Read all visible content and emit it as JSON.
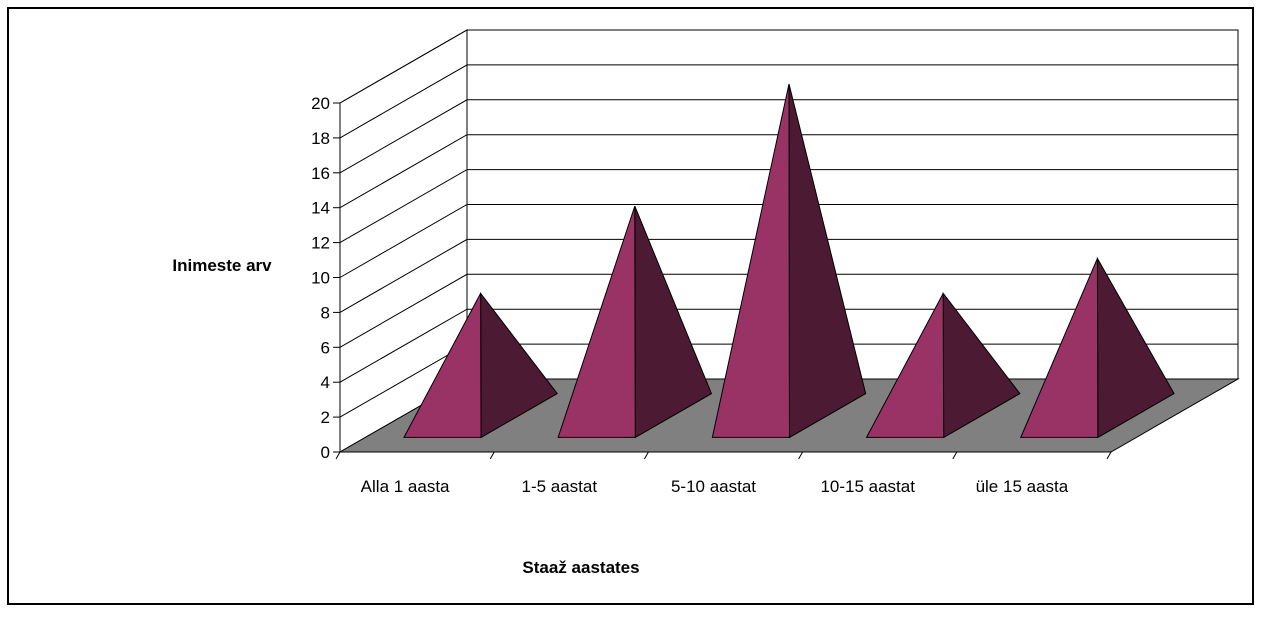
{
  "chart_data": {
    "type": "bar",
    "bar_shape": "3d-pyramid",
    "categories": [
      "Alla 1 aasta",
      "1-5 aastat",
      "5-10 aastat",
      "10-15 aastat",
      "üle 15 aasta"
    ],
    "values": [
      7,
      12,
      19,
      7,
      9
    ],
    "xlabel": "Staaž aastates",
    "ylabel": "Inimeste arv",
    "ylim": [
      0,
      20
    ],
    "yticks": [
      0,
      2,
      4,
      6,
      8,
      10,
      12,
      14,
      16,
      18,
      20
    ],
    "grid": true,
    "legend": "none",
    "colors": {
      "bar_front": "#993366",
      "bar_side": "#4d1a33",
      "floor": "#808080",
      "walls": "#ffffff",
      "lines": "#000000"
    }
  }
}
